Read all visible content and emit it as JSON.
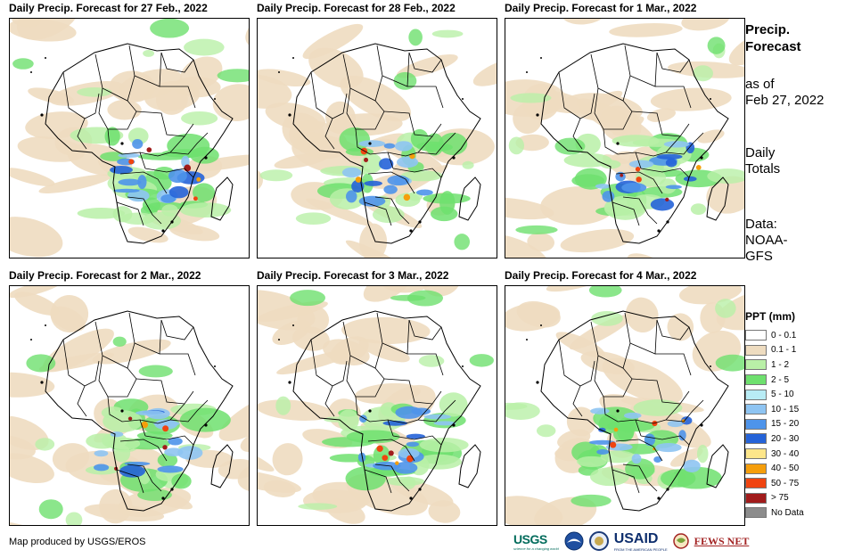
{
  "panels": [
    {
      "title": "Daily Precip. Forecast for 27 Feb., 2022",
      "seed": 11
    },
    {
      "title": "Daily Precip. Forecast for 28 Feb., 2022",
      "seed": 23
    },
    {
      "title": "Daily Precip. Forecast for 1 Mar., 2022",
      "seed": 37
    },
    {
      "title": "Daily Precip. Forecast for 2 Mar., 2022",
      "seed": 41
    },
    {
      "title": "Daily Precip. Forecast for 3 Mar., 2022",
      "seed": 53
    },
    {
      "title": "Daily Precip. Forecast for 4 Mar., 2022",
      "seed": 67
    }
  ],
  "side": {
    "title": "Precip. Forecast",
    "as_of_label": "as of",
    "as_of_date": "Feb 27, 2022",
    "totals_label": "Daily Totals",
    "data_label": "Data: NOAA-GFS"
  },
  "legend": {
    "title": "PPT (mm)",
    "items": [
      {
        "label": "0 - 0.1",
        "color": "#ffffff"
      },
      {
        "label": "0.1 - 1",
        "color": "#eedcc0"
      },
      {
        "label": "1 - 2",
        "color": "#b9f0a7"
      },
      {
        "label": "2 - 5",
        "color": "#6ee06e"
      },
      {
        "label": "5 - 10",
        "color": "#b8ecf5"
      },
      {
        "label": "10 - 15",
        "color": "#8ec4f2"
      },
      {
        "label": "15 - 20",
        "color": "#4e94ea"
      },
      {
        "label": "20 - 30",
        "color": "#2563d8"
      },
      {
        "label": "30 - 40",
        "color": "#fde68a"
      },
      {
        "label": "40 - 50",
        "color": "#f59e0b"
      },
      {
        "label": "50 - 75",
        "color": "#f04410"
      },
      {
        "label": "> 75",
        "color": "#a11b1b"
      },
      {
        "label": "No Data",
        "color": "#8c8c8c"
      }
    ]
  },
  "credit": "Map produced by USGS/EROS",
  "logos": {
    "usgs": "USGS",
    "usgs_tagline": "science for a changing world",
    "usaid": "USAID",
    "usaid_tagline": "FROM THE AMERICAN PEOPLE",
    "fews": "FEWS NET"
  }
}
